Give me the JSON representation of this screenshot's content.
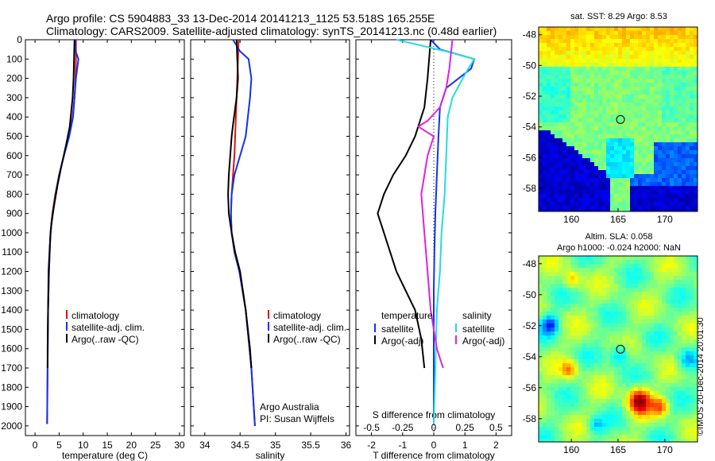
{
  "header": {
    "line1": "Argo profile: CS 5904883_33 13-Dec-2014 20141213_1125 53.518S 165.255E",
    "line2": "Climatology: CARS2009. Satellite-adjusted climatology: synTS_20141213.nc (0.48d earlier)"
  },
  "colors": {
    "climatology": "#dd1111",
    "satellite": "#1133ee",
    "argo": "#000000",
    "satellite_salinity": "#22dddd",
    "argo_salinity": "#dd22dd"
  },
  "chart_data": [
    {
      "id": "temperature",
      "type": "line",
      "xlabel": "temperature (deg C)",
      "ylabel": "",
      "xlim": [
        -2,
        31
      ],
      "ylim": [
        2050,
        0
      ],
      "xticks": [
        0,
        5,
        10,
        15,
        20,
        25,
        30
      ],
      "yticks": [
        0,
        100,
        200,
        300,
        400,
        500,
        600,
        700,
        800,
        900,
        1000,
        1100,
        1200,
        1300,
        1400,
        1500,
        1600,
        1700,
        1800,
        1900,
        2000
      ],
      "legend": [
        "climatology",
        "satellite-adj. clim.",
        "Argo(..raw -QC)"
      ],
      "series": [
        {
          "name": "climatology",
          "color": "#dd1111",
          "x": [
            8.5,
            8.5,
            8.4,
            8.2,
            7.8,
            7.0,
            6.0,
            5.0,
            4.2,
            3.6,
            3.2,
            2.9,
            2.7,
            2.6,
            2.5
          ],
          "y": [
            0,
            100,
            200,
            300,
            400,
            500,
            600,
            700,
            800,
            900,
            1000,
            1200,
            1400,
            1700,
            1990
          ]
        },
        {
          "name": "satellite-adj. clim.",
          "color": "#1133ee",
          "x": [
            8.4,
            8.3,
            9.0,
            8.5,
            7.9,
            7.1,
            6.0,
            5.0,
            4.3,
            3.7,
            3.2,
            2.9,
            2.7,
            2.6,
            2.5
          ],
          "y": [
            0,
            50,
            100,
            200,
            400,
            500,
            600,
            700,
            800,
            900,
            1000,
            1200,
            1400,
            1700,
            1990
          ]
        },
        {
          "name": "Argo(..raw -QC)",
          "color": "#000000",
          "x": [
            8.2,
            8.1,
            8.0,
            7.8,
            7.2,
            6.4,
            5.5,
            4.7,
            4.0,
            3.4,
            3.1,
            2.8,
            2.7,
            2.6,
            2.6
          ],
          "y": [
            0,
            100,
            200,
            300,
            450,
            550,
            650,
            750,
            850,
            950,
            1050,
            1200,
            1400,
            1600,
            1700
          ]
        }
      ]
    },
    {
      "id": "salinity",
      "type": "line",
      "xlabel": "salinity",
      "ylabel": "",
      "xlim": [
        33.8,
        36.05
      ],
      "ylim": [
        2050,
        0
      ],
      "xticks": [
        34,
        34.5,
        35,
        35.5,
        36
      ],
      "legend": [
        "climatology",
        "satellite-adj. clim.",
        "Argo(..raw -QC)"
      ],
      "annotation": [
        "Argo Australia",
        "PI: Susan Wijffels"
      ],
      "series": [
        {
          "name": "climatology",
          "color": "#dd1111",
          "x": [
            34.48,
            34.47,
            34.46,
            34.45,
            34.44,
            34.43,
            34.42,
            34.4,
            34.38,
            34.37,
            34.38,
            34.42,
            34.49,
            34.58,
            34.66,
            34.71
          ],
          "y": [
            0,
            100,
            200,
            300,
            400,
            500,
            600,
            700,
            800,
            900,
            1000,
            1100,
            1200,
            1400,
            1700,
            2000
          ]
        },
        {
          "name": "satellite-adj. clim.",
          "color": "#1133ee",
          "x": [
            34.4,
            34.5,
            34.62,
            34.66,
            34.64,
            34.58,
            34.5,
            34.42,
            34.38,
            34.37,
            34.38,
            34.42,
            34.49,
            34.58,
            34.66,
            34.71
          ],
          "y": [
            0,
            60,
            100,
            200,
            300,
            500,
            600,
            700,
            800,
            900,
            1000,
            1100,
            1200,
            1400,
            1700,
            2000
          ]
        },
        {
          "name": "Argo(..raw -QC)",
          "color": "#000000",
          "x": [
            34.45,
            34.46,
            34.47,
            34.45,
            34.4,
            34.38,
            34.36,
            34.34,
            34.33,
            34.34,
            34.38,
            34.43,
            34.5,
            34.58,
            34.64,
            34.66
          ],
          "y": [
            0,
            100,
            200,
            300,
            440,
            500,
            600,
            700,
            800,
            900,
            1000,
            1100,
            1200,
            1400,
            1600,
            1700
          ]
        }
      ]
    },
    {
      "id": "difference",
      "type": "line",
      "xlabel": "T difference from climatology",
      "xlabel_top": "S difference from climatology",
      "xlim": [
        -2.5,
        2.5
      ],
      "ylim": [
        2050,
        0
      ],
      "xticks": [
        -2,
        -1,
        0,
        1,
        2
      ],
      "xticks_top": [
        "-0.5",
        "-0.25",
        "0",
        "0.25",
        "0.5"
      ],
      "legend": [
        {
          "group": "temperature",
          "items": [
            "satellite",
            "Argo(-adj)"
          ]
        },
        {
          "group": "salinity",
          "items": [
            "satellite",
            "Argo(-adj)"
          ]
        }
      ],
      "series": [
        {
          "name": "satellite",
          "group": "temperature",
          "color": "#1133ee",
          "x": [
            -0.1,
            0.2,
            1.3,
            1.2,
            0.4,
            0.2,
            0.15,
            0.1,
            0.05,
            0.02,
            0.0,
            0.0,
            0.0,
            0.0,
            0.0
          ],
          "y": [
            0,
            50,
            100,
            150,
            250,
            350,
            500,
            700,
            900,
            1100,
            1300,
            1500,
            1700,
            1800,
            1990
          ]
        },
        {
          "name": "Argo(-adj)",
          "group": "temperature",
          "color": "#000000",
          "x": [
            -0.1,
            -0.2,
            -0.3,
            -0.6,
            -0.9,
            -1.3,
            -1.6,
            -1.8,
            -1.6,
            -1.4,
            -1.2,
            -0.9,
            -0.6,
            -0.4,
            -0.3
          ],
          "y": [
            0,
            200,
            350,
            500,
            600,
            700,
            800,
            900,
            1000,
            1100,
            1200,
            1300,
            1400,
            1550,
            1700
          ]
        },
        {
          "name": "satellite",
          "group": "salinity",
          "color": "#22dddd",
          "x": [
            -1.2,
            0.4,
            1.3,
            1.0,
            0.6,
            0.45,
            0.4,
            0.35,
            0.25,
            0.2,
            0.1,
            0.05,
            0.0
          ],
          "y": [
            0,
            60,
            100,
            180,
            300,
            400,
            600,
            800,
            1000,
            1200,
            1400,
            1700,
            1990
          ]
        },
        {
          "name": "Argo(-adj)",
          "group": "salinity",
          "color": "#dd22dd",
          "x": [
            0.6,
            0.5,
            0.4,
            0.2,
            -0.2,
            -0.5,
            0.0,
            -0.2,
            -0.4,
            -0.3,
            -0.2,
            -0.1,
            0.0,
            0.1,
            0.3
          ],
          "y": [
            0,
            150,
            250,
            350,
            420,
            450,
            500,
            600,
            800,
            1000,
            1200,
            1400,
            1500,
            1600,
            1700
          ]
        }
      ]
    },
    {
      "id": "sst-map",
      "type": "heatmap",
      "title": "sat. SST: 8.29  Argo: 8.53",
      "xlim": [
        156.5,
        173.5
      ],
      "ylim": [
        -59.5,
        -47.5
      ],
      "xticks": [
        160,
        165,
        170
      ],
      "yticks": [
        -48,
        -50,
        -52,
        -54,
        -56,
        -58
      ],
      "marker": {
        "lon": 165.255,
        "lat": -53.518
      }
    },
    {
      "id": "sla-map",
      "type": "heatmap",
      "title": [
        "Altim. SLA: 0.058",
        "Argo h1000: -0.024  h2000: NaN"
      ],
      "xlim": [
        156.5,
        173.5
      ],
      "ylim": [
        -59.5,
        -47.5
      ],
      "xticks": [
        160,
        165,
        170
      ],
      "yticks": [
        -48,
        -50,
        -52,
        -54,
        -56,
        -58
      ],
      "marker": {
        "lon": 165.255,
        "lat": -53.518
      }
    }
  ],
  "footer": {
    "stamp": "©IMOS 20-Dec-2014 20:01:30"
  }
}
